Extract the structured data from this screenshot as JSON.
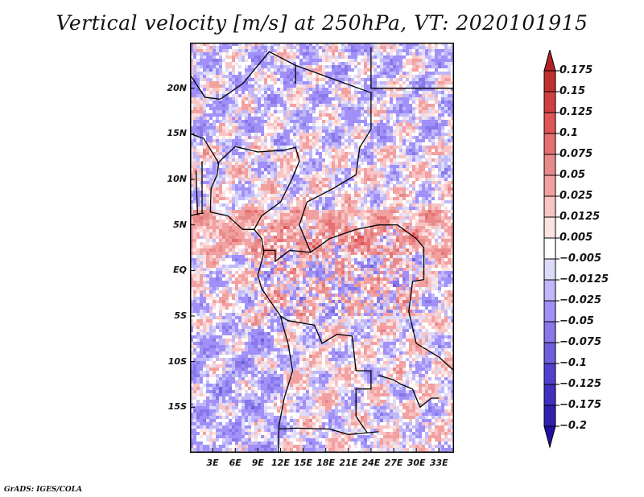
{
  "title": "Vertical velocity [m/s] at 250hPa, VT: 2020101915",
  "credit": "GrADS: IGES/COLA",
  "map": {
    "variable": "Vertical velocity",
    "units": "m/s",
    "level": "250hPa",
    "valid_time": "2020101915",
    "lon_range": [
      0,
      35
    ],
    "lat_range": [
      -20,
      25
    ],
    "y_ticks": [
      {
        "lat": 20,
        "label": "20N"
      },
      {
        "lat": 15,
        "label": "15N"
      },
      {
        "lat": 10,
        "label": "10N"
      },
      {
        "lat": 5,
        "label": "5N"
      },
      {
        "lat": 0,
        "label": "EQ"
      },
      {
        "lat": -5,
        "label": "5S"
      },
      {
        "lat": -10,
        "label": "10S"
      },
      {
        "lat": -15,
        "label": "15S"
      }
    ],
    "x_ticks": [
      {
        "lon": 3,
        "label": "3E"
      },
      {
        "lon": 6,
        "label": "6E"
      },
      {
        "lon": 9,
        "label": "9E"
      },
      {
        "lon": 12,
        "label": "12E"
      },
      {
        "lon": 15,
        "label": "15E"
      },
      {
        "lon": 18,
        "label": "18E"
      },
      {
        "lon": 21,
        "label": "21E"
      },
      {
        "lon": 24,
        "label": "24E"
      },
      {
        "lon": 27,
        "label": "27E"
      },
      {
        "lon": 30,
        "label": "30E"
      },
      {
        "lon": 33,
        "label": "33E"
      }
    ]
  },
  "colorbar": {
    "levels": [
      "0.175",
      "0.15",
      "0.125",
      "0.1",
      "0.075",
      "0.05",
      "0.025",
      "0.0125",
      "0.005",
      "-0.005",
      "-0.0125",
      "-0.025",
      "-0.05",
      "-0.075",
      "-0.1",
      "-0.125",
      "-0.175",
      "-0.2"
    ],
    "colors": [
      "#b22222",
      "#c0302e",
      "#d04040",
      "#e05555",
      "#e67070",
      "#e88a8a",
      "#f2a0a0",
      "#f8c4c4",
      "#fde2e2",
      "#ffffff",
      "#dcdcfa",
      "#c0b8fa",
      "#a090f8",
      "#8878ea",
      "#6e60dc",
      "#5040d0",
      "#4030c0",
      "#3020b0",
      "#2010a0"
    ]
  }
}
